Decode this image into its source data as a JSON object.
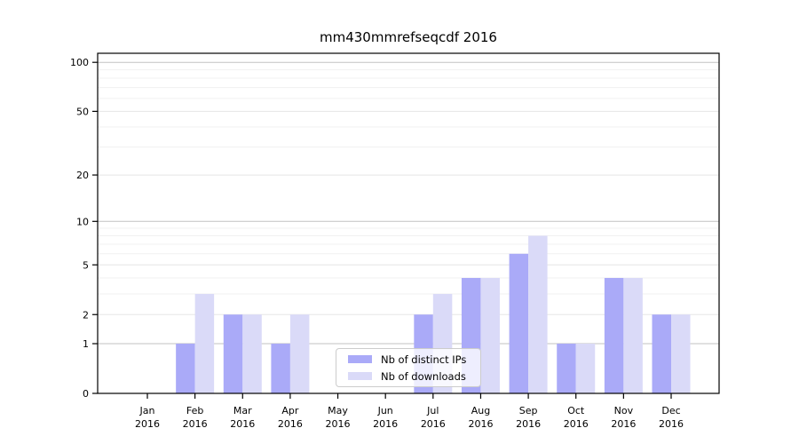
{
  "title": "mm430mmrefseqcdf 2016",
  "chart_data": {
    "type": "bar",
    "title": "mm430mmrefseqcdf 2016",
    "yscale": "log1p",
    "grid": true,
    "categories": [
      "Jan",
      "Feb",
      "Mar",
      "Apr",
      "May",
      "Jun",
      "Jul",
      "Aug",
      "Sep",
      "Oct",
      "Nov",
      "Dec"
    ],
    "category_year": "2016",
    "yticks": [
      0,
      1,
      2,
      5,
      10,
      20,
      50,
      100
    ],
    "minor_gridlines": [
      3,
      4,
      6,
      7,
      8,
      9,
      30,
      40,
      60,
      70,
      80,
      90
    ],
    "ylim": [
      0,
      114
    ],
    "legend_position": "lower-center",
    "series": [
      {
        "name": "Nb of distinct IPs",
        "color": "#aaaaf8",
        "values": [
          0,
          1,
          2,
          1,
          0,
          0,
          2,
          4,
          6,
          1,
          4,
          2
        ]
      },
      {
        "name": "Nb of downloads",
        "color": "#dadaf8",
        "values": [
          0,
          3,
          2,
          2,
          0,
          0,
          3,
          4,
          8,
          1,
          4,
          2
        ]
      }
    ]
  },
  "colors": {
    "background": "#ffffff",
    "axis": "#000000",
    "tick_label": "#000000",
    "grid_decade": "#c2c2c2",
    "grid_labeled": "#e5e5e5",
    "grid_minor": "#f1f1f1",
    "legend_border": "#cccccc"
  }
}
